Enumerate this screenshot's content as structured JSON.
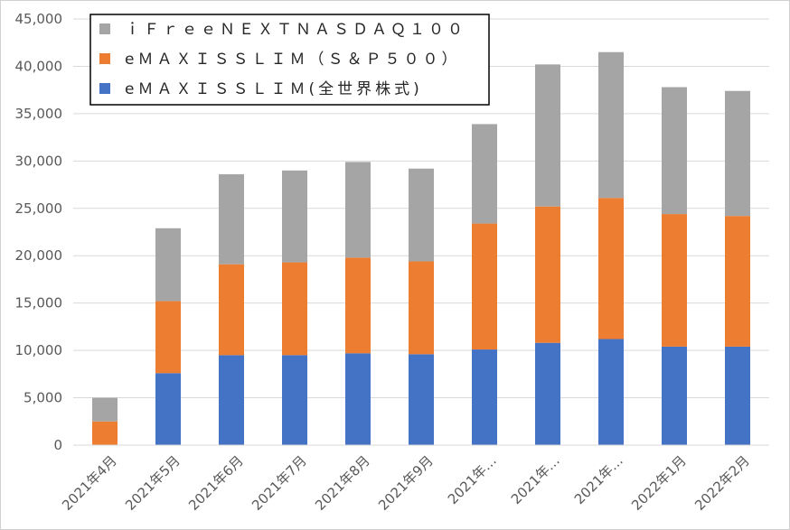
{
  "chart_data": {
    "type": "bar",
    "stacked": true,
    "title": "",
    "xlabel": "",
    "ylabel": "",
    "ylim": [
      0,
      45000
    ],
    "ytick_step": 5000,
    "yticks": [
      "0",
      "5,000",
      "10,000",
      "15,000",
      "20,000",
      "25,000",
      "30,000",
      "35,000",
      "40,000",
      "45,000"
    ],
    "grid": true,
    "legend_position": "top-left",
    "categories": [
      "2021年4月",
      "2021年5月",
      "2021年6月",
      "2021年7月",
      "2021年8月",
      "2021年9月",
      "2021年…",
      "2021年…",
      "2021年…",
      "2022年1月",
      "2022年2月"
    ],
    "series": [
      {
        "name": "eＭＡＸＩＳＳＬＩＭ(全世界株式)",
        "color": "#4472c4",
        "values": [
          0,
          7600,
          9500,
          9500,
          9700,
          9600,
          10100,
          10800,
          11200,
          10400,
          10400
        ]
      },
      {
        "name": "eＭＡＸＩＳＳＬＩＭ（Ｓ＆Ｐ５００）",
        "color": "#ed7d31",
        "values": [
          2500,
          7600,
          9600,
          9800,
          10100,
          9800,
          13300,
          14400,
          14900,
          14000,
          13800
        ]
      },
      {
        "name": "ｉＦｒｅｅＮＥＸＴＮＡＳＤＡＱ１００",
        "color": "#a5a5a5",
        "values": [
          2500,
          7700,
          9500,
          9700,
          10100,
          9800,
          10500,
          15000,
          15400,
          13400,
          13200
        ]
      }
    ]
  }
}
